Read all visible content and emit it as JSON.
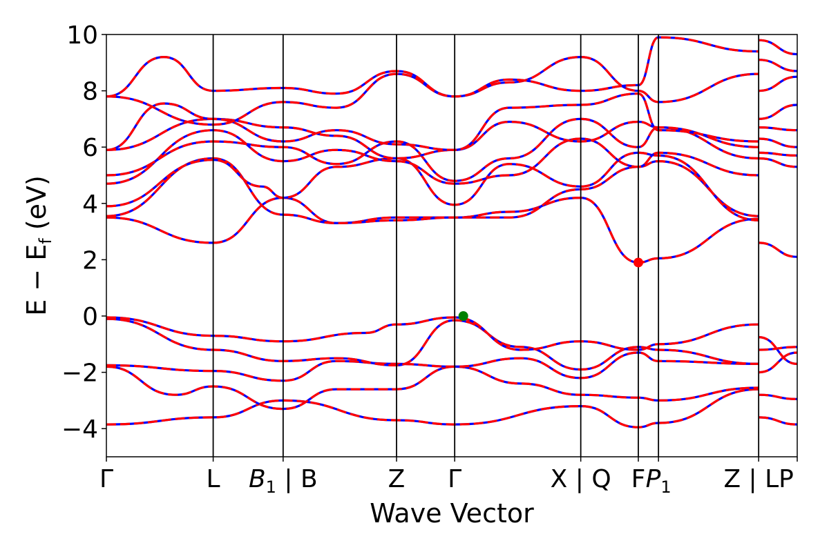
{
  "chart_data": {
    "type": "line",
    "title": "",
    "xlabel": "Wave Vector",
    "ylabel": "E − E",
    "ylabel_subscript": "f",
    "ylabel_unit": " (eV)",
    "ylim": [
      -5,
      10
    ],
    "yticks": [
      -4,
      -2,
      0,
      2,
      4,
      6,
      8,
      10
    ],
    "ytick_labels": [
      "−4",
      "−2",
      "0",
      "2",
      "4",
      "6",
      "8",
      "10"
    ],
    "xlim": [
      0,
      12
    ],
    "kpoints": [
      {
        "x": 0.0,
        "label": "Γ",
        "sub": ""
      },
      {
        "x": 1.855,
        "label": "L",
        "sub": ""
      },
      {
        "x": 3.07,
        "label": "B",
        "sub": "1",
        "suffix": " | B"
      },
      {
        "x": 5.04,
        "label": "Z",
        "sub": ""
      },
      {
        "x": 6.05,
        "label": "Γ",
        "sub": ""
      },
      {
        "x": 8.24,
        "label": "X | Q",
        "sub": ""
      },
      {
        "x": 9.24,
        "label": "F",
        "sub": ""
      },
      {
        "x": 9.59,
        "label": "P",
        "sub": "1"
      },
      {
        "x": 11.33,
        "label": "Z | LP",
        "sub": ""
      },
      {
        "x": 12.0,
        "label": "",
        "sub": ""
      }
    ],
    "grid": false,
    "legend": "none",
    "colors": {
      "solid": "#0000ff",
      "dashed": "#ff0000",
      "vbm": "#008000",
      "cbm": "#ff0000",
      "kline": "#000000"
    },
    "markers": [
      {
        "name": "vbm",
        "x": 6.2,
        "y": 0.0
      },
      {
        "name": "cbm",
        "x": 9.24,
        "y": 1.9
      }
    ],
    "segments": [
      {
        "x0": 0.0,
        "x1": 11.33,
        "bands": [
          {
            "x": [
              0,
              1.855,
              3.07,
              5.04,
              6.05,
              8.24,
              9.24,
              9.59,
              11.33
            ],
            "y": [
              -3.85,
              -3.6,
              -3.0,
              -3.7,
              -3.85,
              -3.2,
              -3.95,
              -3.8,
              -2.6
            ]
          },
          {
            "x": [
              0,
              1.2,
              1.855,
              3.07,
              4.0,
              5.04,
              6.05,
              7.2,
              8.24,
              9.24,
              9.59,
              11.33
            ],
            "y": [
              -1.8,
              -2.8,
              -2.5,
              -3.3,
              -2.6,
              -2.6,
              -1.8,
              -2.4,
              -2.8,
              -2.9,
              -3.0,
              -2.55
            ]
          },
          {
            "x": [
              0,
              1.855,
              3.07,
              4.0,
              5.04,
              6.05,
              7.2,
              8.24,
              9.24,
              9.59,
              11.33
            ],
            "y": [
              -1.75,
              -1.95,
              -2.3,
              -1.6,
              -1.7,
              -1.8,
              -1.5,
              -2.2,
              -1.3,
              -1.6,
              -1.7
            ]
          },
          {
            "x": [
              0,
              1.855,
              3.07,
              4.0,
              5.04,
              6.05,
              7.2,
              8.24,
              9.24,
              9.59,
              11.33
            ],
            "y": [
              -0.1,
              -1.2,
              -1.6,
              -1.5,
              -1.75,
              -0.15,
              -1.1,
              -1.9,
              -1.1,
              -1.2,
              -1.7
            ]
          },
          {
            "x": [
              0,
              1.855,
              3.07,
              4.5,
              5.04,
              6.05,
              7.2,
              8.24,
              9.24,
              9.59,
              11.33
            ],
            "y": [
              -0.05,
              -0.7,
              -0.9,
              -0.6,
              -0.3,
              -0.05,
              -1.2,
              -0.9,
              -1.2,
              -1.0,
              -0.3
            ]
          },
          {
            "x": [
              0,
              1.855,
              3.07,
              4.0,
              5.04,
              6.05,
              7.0,
              8.24,
              9.24,
              9.59,
              11.33
            ],
            "y": [
              3.5,
              2.6,
              4.2,
              3.3,
              3.5,
              3.5,
              3.7,
              4.2,
              1.9,
              2.05,
              3.45
            ]
          },
          {
            "x": [
              0,
              1.855,
              3.07,
              4.0,
              5.04,
              6.05,
              7.0,
              8.24,
              9.24,
              9.59,
              11.33
            ],
            "y": [
              3.55,
              5.6,
              3.6,
              3.3,
              3.4,
              3.5,
              3.5,
              4.5,
              5.3,
              5.5,
              3.55
            ]
          },
          {
            "x": [
              0,
              1.855,
              2.7,
              3.07,
              4.0,
              5.04,
              6.05,
              7.0,
              8.24,
              9.24,
              9.59,
              11.33
            ],
            "y": [
              3.9,
              5.55,
              4.6,
              4.2,
              5.3,
              5.6,
              3.95,
              5.4,
              4.6,
              5.8,
              5.7,
              3.4
            ]
          },
          {
            "x": [
              0,
              1.855,
              3.07,
              4.0,
              5.04,
              6.05,
              7.0,
              8.24,
              9.24,
              9.59,
              11.33
            ],
            "y": [
              4.7,
              6.6,
              5.5,
              5.9,
              5.5,
              4.7,
              5.0,
              6.3,
              5.3,
              5.8,
              5.0
            ]
          },
          {
            "x": [
              0,
              1.855,
              3.07,
              4.0,
              5.04,
              6.05,
              7.0,
              8.24,
              9.24,
              9.59,
              11.33
            ],
            "y": [
              5.0,
              6.2,
              6.0,
              5.4,
              6.2,
              4.8,
              5.6,
              7.0,
              6.0,
              6.7,
              5.6
            ]
          },
          {
            "x": [
              0,
              1.855,
              3.07,
              4.0,
              5.04,
              6.05,
              7.0,
              8.24,
              9.24,
              9.59,
              11.33
            ],
            "y": [
              5.9,
              7.0,
              6.7,
              6.4,
              5.6,
              5.9,
              6.9,
              6.2,
              6.9,
              6.7,
              6.0
            ]
          },
          {
            "x": [
              0,
              1.0,
              1.855,
              3.07,
              4.0,
              5.04,
              6.05,
              7.0,
              8.24,
              9.24,
              9.59,
              11.33
            ],
            "y": [
              5.9,
              7.55,
              7.0,
              6.2,
              6.6,
              6.1,
              5.9,
              7.4,
              7.5,
              7.9,
              6.6,
              6.2
            ]
          },
          {
            "x": [
              0,
              1.855,
              3.07,
              4.0,
              5.04,
              6.05,
              7.0,
              8.24,
              9.24,
              9.59,
              11.33
            ],
            "y": [
              7.8,
              6.8,
              7.6,
              7.4,
              8.6,
              7.8,
              8.3,
              9.2,
              8.0,
              7.6,
              8.6
            ]
          },
          {
            "x": [
              0,
              1.0,
              1.855,
              3.07,
              4.0,
              5.04,
              6.05,
              7.0,
              8.24,
              9.24,
              9.59,
              11.33
            ],
            "y": [
              7.8,
              9.2,
              8.0,
              8.1,
              7.9,
              8.7,
              7.8,
              8.4,
              8.0,
              8.2,
              9.9,
              9.4
            ]
          }
        ]
      },
      {
        "x0": 11.33,
        "x1": 12.0,
        "bands": [
          {
            "x": [
              11.33,
              12.0
            ],
            "y": [
              -3.6,
              -3.85
            ]
          },
          {
            "x": [
              11.33,
              12.0
            ],
            "y": [
              -2.8,
              -2.95
            ]
          },
          {
            "x": [
              11.33,
              12.0
            ],
            "y": [
              -2.0,
              -1.3
            ]
          },
          {
            "x": [
              11.33,
              12.0
            ],
            "y": [
              -1.2,
              -1.1
            ]
          },
          {
            "x": [
              11.33,
              12.0
            ],
            "y": [
              -0.75,
              -1.7
            ]
          },
          {
            "x": [
              11.33,
              12.0
            ],
            "y": [
              2.6,
              2.1
            ]
          },
          {
            "x": [
              11.33,
              12.0
            ],
            "y": [
              5.6,
              5.3
            ]
          },
          {
            "x": [
              11.33,
              12.0
            ],
            "y": [
              5.8,
              5.7
            ]
          },
          {
            "x": [
              11.33,
              12.0
            ],
            "y": [
              6.3,
              6.0
            ]
          },
          {
            "x": [
              11.33,
              12.0
            ],
            "y": [
              6.7,
              6.6
            ]
          },
          {
            "x": [
              11.33,
              12.0
            ],
            "y": [
              7.0,
              7.5
            ]
          },
          {
            "x": [
              11.33,
              12.0
            ],
            "y": [
              8.0,
              8.5
            ]
          },
          {
            "x": [
              11.33,
              12.0
            ],
            "y": [
              9.1,
              8.7
            ]
          },
          {
            "x": [
              11.33,
              12.0
            ],
            "y": [
              9.8,
              9.3
            ]
          }
        ]
      }
    ]
  }
}
